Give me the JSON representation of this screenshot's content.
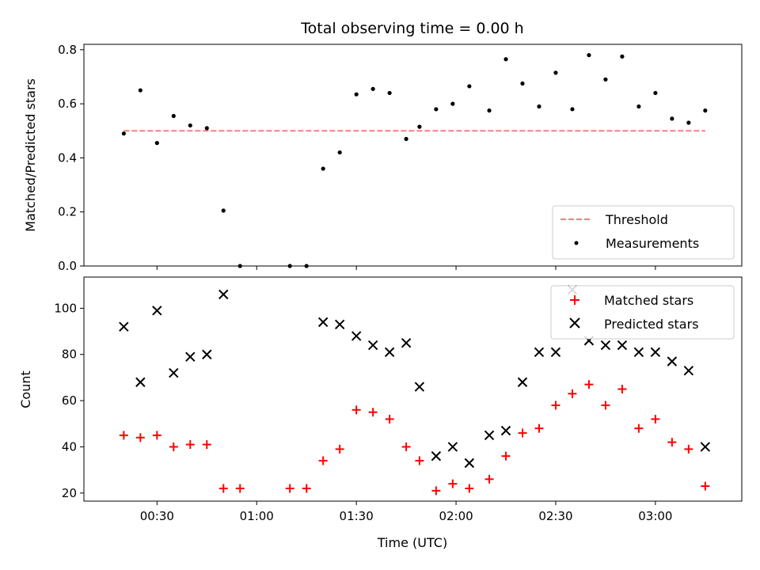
{
  "chart_data": [
    {
      "type": "scatter",
      "title": "Total observing time = 0.00 h",
      "xlabel": "",
      "ylabel": "Matched/Predicted stars",
      "xlim": [
        "00:08",
        "03:26"
      ],
      "ylim": [
        0,
        0.82
      ],
      "yticks": [
        "0.0",
        "0.2",
        "0.4",
        "0.6",
        "0.8"
      ],
      "legend_loc": "lower-right",
      "series": [
        {
          "name": "Threshold",
          "style": "dashed-line",
          "color": "#f08080",
          "x": [
            "00:20",
            "03:15"
          ],
          "y": [
            0.5,
            0.5
          ]
        },
        {
          "name": "Measurements",
          "style": "dot",
          "color": "#000000",
          "x": [
            "00:20",
            "00:25",
            "00:30",
            "00:35",
            "00:40",
            "00:45",
            "00:50",
            "00:55",
            "01:10",
            "01:15",
            "01:20",
            "01:25",
            "01:30",
            "01:35",
            "01:40",
            "01:45",
            "01:49",
            "01:54",
            "01:59",
            "02:04",
            "02:10",
            "02:15",
            "02:20",
            "02:25",
            "02:30",
            "02:35",
            "02:40",
            "02:45",
            "02:50",
            "02:55",
            "03:00",
            "03:05",
            "03:10",
            "03:15"
          ],
          "y": [
            0.49,
            0.65,
            0.455,
            0.555,
            0.52,
            0.51,
            0.205,
            0.0,
            0.0,
            0.0,
            0.36,
            0.42,
            0.635,
            0.655,
            0.64,
            0.47,
            0.515,
            0.58,
            0.6,
            0.665,
            0.575,
            0.765,
            0.675,
            0.59,
            0.715,
            0.58,
            0.78,
            0.69,
            0.775,
            0.59,
            0.64,
            0.545,
            0.53,
            0.575
          ]
        }
      ]
    },
    {
      "type": "scatter",
      "title": "",
      "xlabel": "Time (UTC)",
      "ylabel": "Count",
      "xlim": [
        "00:08",
        "03:26"
      ],
      "ylim": [
        16.5,
        113.5
      ],
      "yticks": [
        "20",
        "40",
        "60",
        "80",
        "100"
      ],
      "xticks": [
        "00:30",
        "01:00",
        "01:30",
        "02:00",
        "02:30",
        "03:00"
      ],
      "legend_loc": "upper-right",
      "series": [
        {
          "name": "Matched stars",
          "marker": "plus",
          "color": "#ff0000",
          "x": [
            "00:20",
            "00:25",
            "00:30",
            "00:35",
            "00:40",
            "00:45",
            "00:50",
            "00:55",
            "01:10",
            "01:15",
            "01:20",
            "01:25",
            "01:30",
            "01:35",
            "01:40",
            "01:45",
            "01:49",
            "01:54",
            "01:59",
            "02:04",
            "02:10",
            "02:15",
            "02:20",
            "02:25",
            "02:30",
            "02:35",
            "02:40",
            "02:45",
            "02:50",
            "02:55",
            "03:00",
            "03:05",
            "03:10",
            "03:15"
          ],
          "y": [
            45,
            44,
            45,
            40,
            41,
            41,
            22,
            22,
            22,
            22,
            34,
            39,
            56,
            55,
            52,
            40,
            34,
            21,
            24,
            22,
            26,
            36,
            46,
            48,
            58,
            63,
            67,
            58,
            65,
            48,
            52,
            42,
            39,
            23
          ]
        },
        {
          "name": "Predicted stars",
          "marker": "x",
          "color": "#000000",
          "x": [
            "00:20",
            "00:25",
            "00:30",
            "00:35",
            "00:40",
            "00:45",
            "00:50",
            "01:20",
            "01:25",
            "01:30",
            "01:35",
            "01:40",
            "01:45",
            "01:49",
            "01:54",
            "01:59",
            "02:04",
            "02:10",
            "02:15",
            "02:20",
            "02:25",
            "02:30",
            "02:35",
            "02:40",
            "02:45",
            "02:50",
            "02:55",
            "03:00",
            "03:05",
            "03:10",
            "03:15"
          ],
          "y": [
            92,
            68,
            99,
            72,
            79,
            80,
            106,
            94,
            93,
            88,
            84,
            81,
            85,
            66,
            36,
            40,
            33,
            45,
            47,
            68,
            81,
            81,
            108,
            86,
            84,
            84,
            81,
            81,
            77,
            73,
            40
          ]
        }
      ]
    }
  ]
}
